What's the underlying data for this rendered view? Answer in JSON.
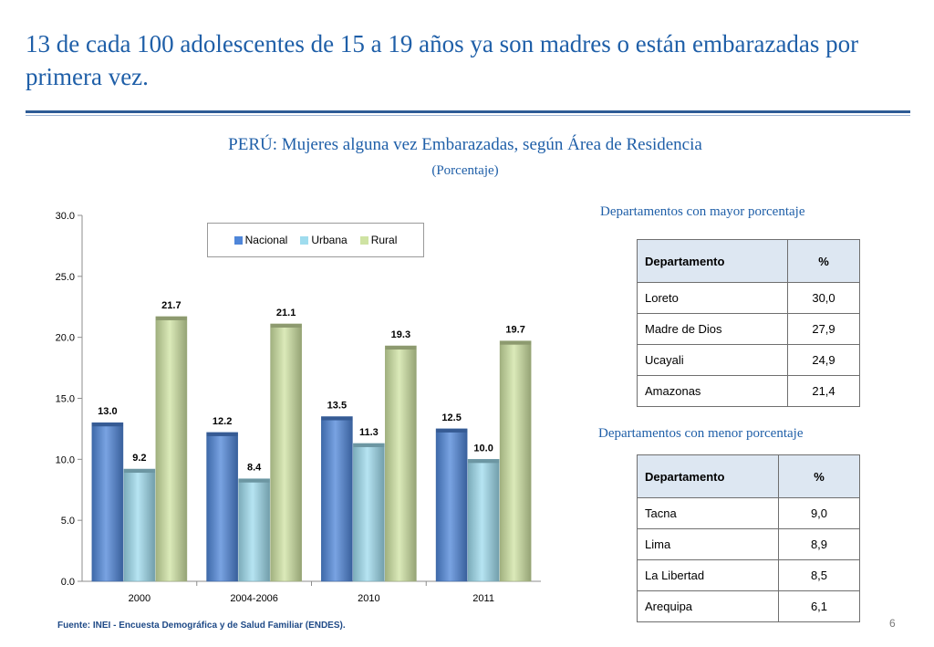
{
  "slide": {
    "title": "13 de cada 100 adolescentes de 15 a 19 años ya son madres o están embarazadas por primera vez.",
    "page_number": "6",
    "source": "Fuente: INEI - Encuesta Demográfica y de Salud Familiar (ENDES)."
  },
  "chart_data": {
    "type": "bar",
    "title": "PERÚ: Mujeres alguna vez Embarazadas, según Área de Residencia",
    "subtitle": "(Porcentaje)",
    "categories": [
      "2000",
      "2004-2006",
      "2010",
      "2011"
    ],
    "series": [
      {
        "name": "Nacional",
        "values": [
          13.0,
          12.2,
          13.5,
          12.5
        ],
        "color": "#4f86d9"
      },
      {
        "name": "Urbana",
        "values": [
          9.2,
          8.4,
          11.3,
          10.0
        ],
        "color": "#9fdcee"
      },
      {
        "name": "Rural",
        "values": [
          21.7,
          21.1,
          19.3,
          19.7
        ],
        "color": "#cfe3a3"
      }
    ],
    "ylim": [
      0,
      30
    ],
    "yticks": [
      "0.0",
      "5.0",
      "10.0",
      "15.0",
      "20.0",
      "25.0",
      "30.0"
    ],
    "grid": false,
    "legend": "top-center",
    "xlabel": "",
    "ylabel": ""
  },
  "tables": {
    "mayor": {
      "heading": "Departamentos con mayor porcentaje",
      "headers": [
        "Departamento",
        "%"
      ],
      "rows": [
        {
          "name": "Loreto",
          "pct": "30,0"
        },
        {
          "name": "Madre de Dios",
          "pct": "27,9"
        },
        {
          "name": "Ucayali",
          "pct": "24,9"
        },
        {
          "name": "Amazonas",
          "pct": "21,4"
        }
      ]
    },
    "menor": {
      "heading": "Departamentos con menor porcentaje",
      "headers": [
        "Departamento",
        "%"
      ],
      "rows": [
        {
          "name": "Tacna",
          "pct": "9,0"
        },
        {
          "name": "Lima",
          "pct": "8,9"
        },
        {
          "name": "La Libertad",
          "pct": "8,5"
        },
        {
          "name": "Arequipa",
          "pct": "6,1"
        }
      ]
    }
  }
}
